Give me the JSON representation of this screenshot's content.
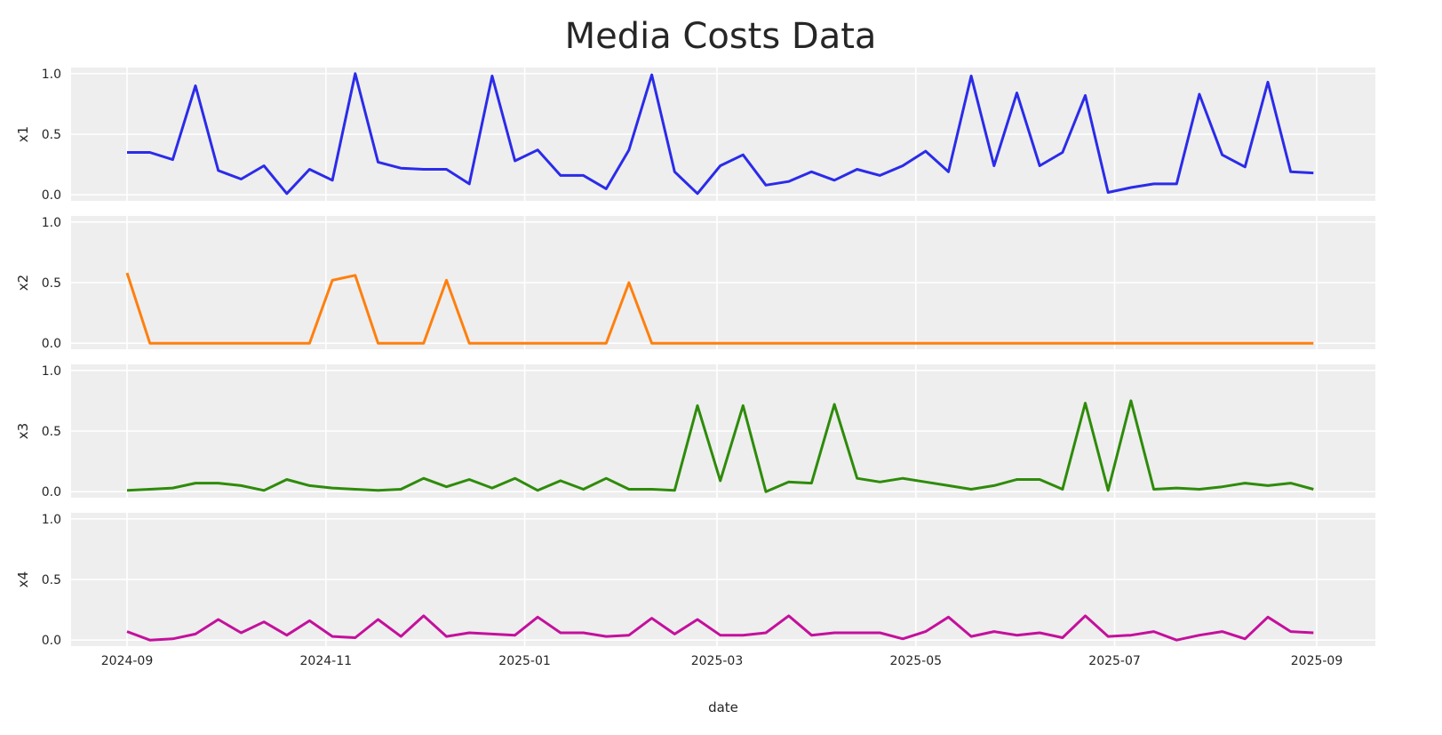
{
  "chart_data": {
    "type": "line",
    "title": "Media Costs Data",
    "xlabel": "date",
    "x_start": "2024-09-01",
    "x_step_days": 7,
    "x_range": [
      "2024-09-01",
      "2025-09-01"
    ],
    "x_ticks": [
      "2024-09",
      "2024-11",
      "2025-01",
      "2025-03",
      "2025-05",
      "2025-07",
      "2025-09"
    ],
    "x_tick_dates": [
      "2024-09-01",
      "2024-11-01",
      "2025-01-01",
      "2025-03-01",
      "2025-05-01",
      "2025-07-01",
      "2025-09-01"
    ],
    "ylim": [
      -0.05,
      1.05
    ],
    "y_ticks": [
      0.0,
      0.5,
      1.0
    ],
    "y_tick_labels": [
      "0.0",
      "0.5",
      "1.0"
    ],
    "grid": true,
    "series": [
      {
        "name": "x1",
        "color": "#2b2bea",
        "values": [
          0.35,
          0.35,
          0.29,
          0.9,
          0.2,
          0.13,
          0.24,
          0.01,
          0.21,
          0.12,
          1.0,
          0.27,
          0.22,
          0.21,
          0.21,
          0.09,
          0.98,
          0.28,
          0.37,
          0.16,
          0.16,
          0.05,
          0.37,
          0.99,
          0.19,
          0.01,
          0.24,
          0.33,
          0.08,
          0.11,
          0.19,
          0.12,
          0.21,
          0.16,
          0.24,
          0.36,
          0.19,
          0.98,
          0.24,
          0.84,
          0.24,
          0.35,
          0.82,
          0.02,
          0.06,
          0.09,
          0.09,
          0.83,
          0.33,
          0.23,
          0.93,
          0.19,
          0.18
        ]
      },
      {
        "name": "x2",
        "color": "#ff7f0e",
        "values": [
          0.58,
          0,
          0,
          0,
          0,
          0,
          0,
          0,
          0,
          0.52,
          0.56,
          0,
          0,
          0,
          0.52,
          0,
          0,
          0,
          0,
          0,
          0,
          0,
          0.5,
          0,
          0,
          0,
          0,
          0,
          0,
          0,
          0,
          0,
          0,
          0,
          0,
          0,
          0,
          0,
          0,
          0,
          0,
          0,
          0,
          0,
          0,
          0,
          0,
          0,
          0,
          0,
          0,
          0,
          0
        ]
      },
      {
        "name": "x3",
        "color": "#2e8b0a",
        "values": [
          0.01,
          0.02,
          0.03,
          0.07,
          0.07,
          0.05,
          0.01,
          0.1,
          0.05,
          0.03,
          0.02,
          0.01,
          0.02,
          0.11,
          0.04,
          0.1,
          0.03,
          0.11,
          0.01,
          0.09,
          0.02,
          0.11,
          0.02,
          0.02,
          0.01,
          0.71,
          0.09,
          0.71,
          0.0,
          0.08,
          0.07,
          0.72,
          0.11,
          0.08,
          0.11,
          0.08,
          0.05,
          0.02,
          0.05,
          0.1,
          0.1,
          0.02,
          0.73,
          0.01,
          0.75,
          0.02,
          0.03,
          0.02,
          0.04,
          0.07,
          0.05,
          0.07,
          0.02
        ]
      },
      {
        "name": "x4",
        "color": "#c4109c",
        "values": [
          0.07,
          0.0,
          0.01,
          0.05,
          0.17,
          0.06,
          0.15,
          0.04,
          0.16,
          0.03,
          0.02,
          0.17,
          0.03,
          0.2,
          0.03,
          0.06,
          0.05,
          0.04,
          0.19,
          0.06,
          0.06,
          0.03,
          0.04,
          0.18,
          0.05,
          0.17,
          0.04,
          0.04,
          0.06,
          0.2,
          0.04,
          0.06,
          0.06,
          0.06,
          0.01,
          0.07,
          0.19,
          0.03,
          0.07,
          0.04,
          0.06,
          0.02,
          0.2,
          0.03,
          0.04,
          0.07,
          0.0,
          0.04,
          0.07,
          0.01,
          0.19,
          0.07,
          0.06
        ]
      }
    ]
  }
}
